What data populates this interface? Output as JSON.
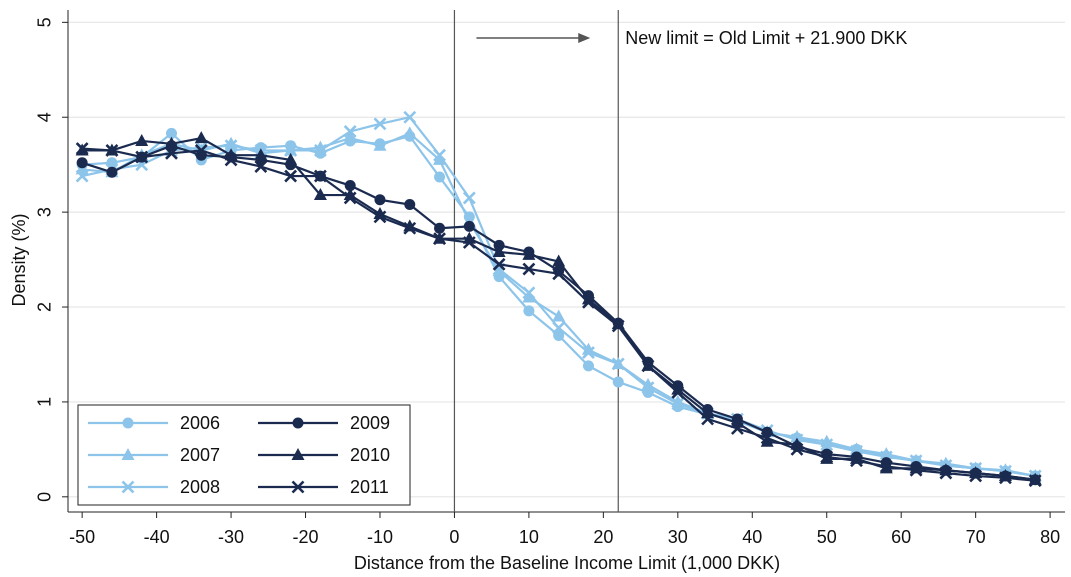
{
  "chart_data": {
    "type": "line",
    "x_label": "Distance from the Baseline Income Limit (1,000 DKK)",
    "y_label": "Density (%)",
    "annotation": "New limit = Old Limit + 21.900 DKK",
    "vlines": [
      0,
      22
    ],
    "x": [
      -50,
      -46,
      -42,
      -38,
      -34,
      -30,
      -26,
      -22,
      -18,
      -14,
      -10,
      -6,
      -2,
      2,
      6,
      10,
      14,
      18,
      22,
      26,
      30,
      34,
      38,
      42,
      46,
      50,
      54,
      58,
      62,
      66,
      70,
      74,
      78
    ],
    "series": [
      {
        "name": "2006",
        "color": "#8cc4ea",
        "marker": "circle",
        "values": [
          3.5,
          3.52,
          3.58,
          3.83,
          3.55,
          3.65,
          3.68,
          3.7,
          3.62,
          3.75,
          3.72,
          3.8,
          3.37,
          2.95,
          2.32,
          1.96,
          1.7,
          1.38,
          1.21,
          1.1,
          0.95,
          0.87,
          0.8,
          0.68,
          0.62,
          0.55,
          0.5,
          0.43,
          0.38,
          0.33,
          0.3,
          0.27,
          0.22
        ]
      },
      {
        "name": "2007",
        "color": "#8cc4ea",
        "marker": "triangle",
        "values": [
          3.45,
          3.42,
          3.6,
          3.72,
          3.65,
          3.72,
          3.62,
          3.65,
          3.68,
          3.78,
          3.7,
          3.83,
          3.55,
          2.9,
          2.38,
          2.1,
          1.9,
          1.55,
          1.4,
          1.18,
          1.0,
          0.88,
          0.8,
          0.68,
          0.63,
          0.58,
          0.5,
          0.45,
          0.38,
          0.35,
          0.3,
          0.28,
          0.22
        ]
      },
      {
        "name": "2008",
        "color": "#8cc4ea",
        "marker": "x",
        "values": [
          3.38,
          3.45,
          3.5,
          3.65,
          3.68,
          3.7,
          3.65,
          3.65,
          3.65,
          3.85,
          3.93,
          4.0,
          3.6,
          3.15,
          2.4,
          2.15,
          1.78,
          1.52,
          1.4,
          1.15,
          0.98,
          0.88,
          0.82,
          0.7,
          0.6,
          0.55,
          0.48,
          0.42,
          0.38,
          0.33,
          0.3,
          0.27,
          0.22
        ]
      },
      {
        "name": "2009",
        "color": "#1b2b50",
        "marker": "circle",
        "values": [
          3.52,
          3.42,
          3.58,
          3.7,
          3.6,
          3.58,
          3.55,
          3.5,
          3.38,
          3.28,
          3.13,
          3.08,
          2.83,
          2.85,
          2.65,
          2.58,
          2.38,
          2.12,
          1.83,
          1.42,
          1.17,
          0.92,
          0.82,
          0.68,
          0.53,
          0.45,
          0.42,
          0.36,
          0.32,
          0.28,
          0.25,
          0.22,
          0.18
        ]
      },
      {
        "name": "2010",
        "color": "#1b2b50",
        "marker": "triangle",
        "values": [
          3.65,
          3.65,
          3.75,
          3.72,
          3.78,
          3.6,
          3.6,
          3.55,
          3.18,
          3.18,
          2.98,
          2.85,
          2.72,
          2.72,
          2.58,
          2.55,
          2.48,
          2.08,
          1.82,
          1.38,
          1.13,
          0.88,
          0.78,
          0.58,
          0.55,
          0.4,
          0.4,
          0.3,
          0.3,
          0.28,
          0.25,
          0.22,
          0.18
        ]
      },
      {
        "name": "2011",
        "color": "#1b2b50",
        "marker": "x",
        "values": [
          3.67,
          3.65,
          3.58,
          3.62,
          3.65,
          3.55,
          3.48,
          3.38,
          3.38,
          3.15,
          2.95,
          2.83,
          2.72,
          2.68,
          2.45,
          2.4,
          2.35,
          2.05,
          1.8,
          1.38,
          1.1,
          0.82,
          0.72,
          0.62,
          0.5,
          0.42,
          0.38,
          0.32,
          0.28,
          0.25,
          0.22,
          0.2,
          0.17
        ]
      }
    ],
    "xlim": [
      -51.9,
      82
    ],
    "xticks": [
      -50,
      -40,
      -30,
      -20,
      -10,
      0,
      10,
      20,
      30,
      40,
      50,
      60,
      70,
      80
    ],
    "ylim": [
      -0.16,
      5.13
    ],
    "yticks": [
      0,
      1,
      2,
      3,
      4,
      5
    ],
    "grid": true,
    "legend": "lower left"
  }
}
